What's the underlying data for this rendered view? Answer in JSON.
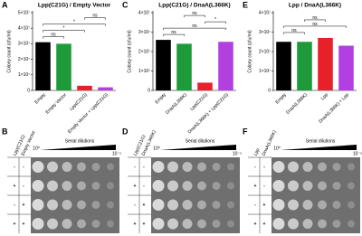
{
  "chart_data": [
    {
      "type": "bar",
      "panel": "A",
      "title": "Lpp(C21G) / Empty Vector",
      "y_label": "Colony count (cfu/ml)",
      "categories": [
        "Empty",
        "Empty Vector",
        "Lpp(C21G)",
        "Empty Vector + Lpp(C21G)"
      ],
      "values": [
        31000000,
        30000000,
        3000000,
        2000000
      ],
      "colors": [
        "#000000",
        "#1f9a3a",
        "#e8202a",
        "#b23fe0"
      ],
      "ylim": [
        0,
        50000000
      ],
      "yticks": [
        0,
        {
          "value": 10000000,
          "label": "1×10⁷"
        },
        {
          "value": 20000000,
          "label": "2×10⁷"
        },
        {
          "value": 30000000,
          "label": "3×10⁷"
        },
        {
          "value": 40000000,
          "label": "4×10⁷"
        },
        {
          "value": 50000000,
          "label": "5×10⁷"
        }
      ],
      "annotations": [
        "ns",
        "*",
        "*",
        "ns"
      ]
    },
    {
      "type": "bar",
      "panel": "C",
      "title": "Lpp(C21G) / DnaA(L366K)",
      "y_label": "Colony count (cfu/ml)",
      "categories": [
        "Empty",
        "DnaA(L366K)",
        "Lpp(C21G)",
        "DnaA(L366K) + Lpp(C21G)"
      ],
      "values": [
        26000000,
        24000000,
        4000000,
        25000000
      ],
      "colors": [
        "#000000",
        "#1f9a3a",
        "#e8202a",
        "#b23fe0"
      ],
      "ylim": [
        0,
        40000000
      ],
      "yticks": [
        0,
        {
          "value": 10000000,
          "label": "1×10⁷"
        },
        {
          "value": 20000000,
          "label": "2×10⁷"
        },
        {
          "value": 30000000,
          "label": "3×10⁷"
        },
        {
          "value": 40000000,
          "label": "4×10⁷"
        }
      ],
      "annotations": [
        "ns",
        "ns",
        "*",
        "ns"
      ]
    },
    {
      "type": "bar",
      "panel": "E",
      "title": "Lpp / DnaA(L366K)",
      "y_label": "Colony count (cfu/ml)",
      "categories": [
        "Empty",
        "DnaA(L366K)",
        "Lpp",
        "DnaA(L366K) + Lpp"
      ],
      "values": [
        25000000,
        25000000,
        27000000,
        23000000
      ],
      "colors": [
        "#000000",
        "#1f9a3a",
        "#e8202a",
        "#b23fe0"
      ],
      "ylim": [
        0,
        40000000
      ],
      "yticks": [
        0,
        {
          "value": 10000000,
          "label": "1×10⁷"
        },
        {
          "value": 20000000,
          "label": "2×10⁷"
        },
        {
          "value": 30000000,
          "label": "3×10⁷"
        },
        {
          "value": 40000000,
          "label": "4×10⁷"
        }
      ],
      "annotations": [
        "ns",
        "ns",
        "ns"
      ]
    }
  ],
  "plates": [
    {
      "panel": "B",
      "strains": [
        "Lpp(C21G)",
        "Empty Vector"
      ],
      "gradient": "Serial dilutions",
      "start": "10⁰",
      "end": "10⁻⁵",
      "rows": [
        [
          "-",
          "-"
        ],
        [
          "+",
          "-"
        ],
        [
          "-",
          "+"
        ],
        [
          "+",
          "+"
        ]
      ]
    },
    {
      "panel": "D",
      "strains": [
        "Lpp(C21G)",
        "DnaA(L366K)"
      ],
      "gradient": "Serial dilutions",
      "start": "10⁰",
      "end": "10⁻⁵",
      "rows": [
        [
          "-",
          "-"
        ],
        [
          "+",
          "-"
        ],
        [
          "-",
          "+"
        ],
        [
          "+",
          "+"
        ]
      ]
    },
    {
      "panel": "F",
      "strains": [
        "Lpp",
        "DnaA(L366K)"
      ],
      "gradient": "Serial dilutions",
      "start": "10⁰",
      "end": "10⁻⁵",
      "rows": [
        [
          "-",
          "-"
        ],
        [
          "+",
          "-"
        ],
        [
          "-",
          "+"
        ],
        [
          "+",
          "+"
        ]
      ]
    }
  ]
}
